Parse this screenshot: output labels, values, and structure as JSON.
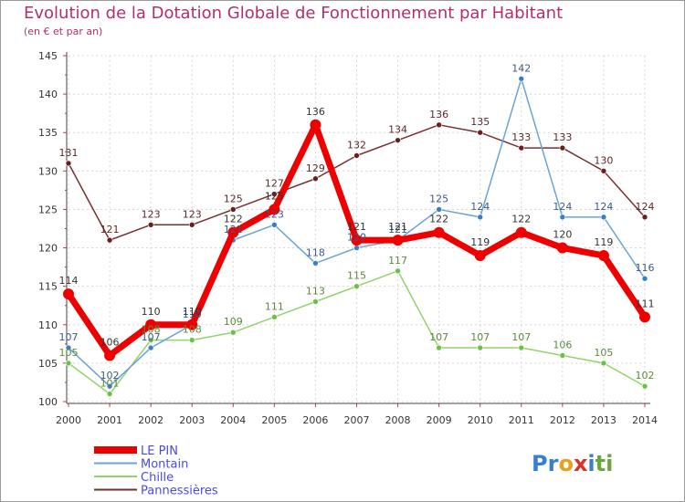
{
  "header": {
    "title": "Evolution de la Dotation Globale de Fonctionnement par Habitant",
    "subtitle": "(en € et par an)"
  },
  "logo": {
    "text": "Proxiti",
    "letters": [
      "P",
      "r",
      "o",
      "x",
      "i",
      "t",
      "i"
    ],
    "colors": [
      "#3a7fcf",
      "#3a7fcf",
      "#e8a21a",
      "#d9322a",
      "#3a7fcf",
      "#66a83a",
      "#66a83a"
    ]
  },
  "chart_data": {
    "type": "line",
    "title": "Evolution de la Dotation Globale de Fonctionnement par Habitant",
    "subtitle": "(en € et par an)",
    "xlabel": "",
    "ylabel": "",
    "ylim": [
      100,
      145
    ],
    "yticks": [
      100,
      105,
      110,
      115,
      120,
      125,
      130,
      135,
      140,
      145
    ],
    "grid": true,
    "legend_position": "bottom-left",
    "x": [
      "2000",
      "2001",
      "2002",
      "2003",
      "2004",
      "2005",
      "2006",
      "2007",
      "2008",
      "2009",
      "2010",
      "2011",
      "2012",
      "2013",
      "2014"
    ],
    "series": [
      {
        "name": "Pannessières",
        "color": "#7a2f2f",
        "pointColor": "#6a1f1f",
        "labelColor": "#5a2a2a",
        "width": 1.5,
        "marker": 3,
        "values": [
          131,
          121,
          123,
          123,
          125,
          127,
          129,
          132,
          134,
          136,
          135,
          133,
          133,
          130,
          124
        ]
      },
      {
        "name": "Chille",
        "color": "#93d36b",
        "pointColor": "#6cc04a",
        "labelColor": "#5a8a3a",
        "width": 1.5,
        "marker": 3,
        "values": [
          105,
          101,
          108,
          108,
          109,
          111,
          113,
          115,
          117,
          107,
          107,
          107,
          106,
          105,
          102
        ]
      },
      {
        "name": "Montain",
        "color": "#6ba3d6",
        "pointColor": "#3a7fc4",
        "labelColor": "#3a5a8a",
        "width": 1.5,
        "marker": 3,
        "values": [
          107,
          102,
          107,
          110,
          121,
          123,
          118,
          120,
          121,
          125,
          124,
          142,
          124,
          124,
          116
        ]
      },
      {
        "name": "LE PIN",
        "color": "#ee0000",
        "pointColor": "#ee0000",
        "labelColor": "#333333",
        "width": 7,
        "marker": 6,
        "values": [
          114,
          106,
          110,
          110,
          122,
          125,
          136,
          121,
          121,
          122,
          119,
          122,
          120,
          119,
          111
        ]
      }
    ],
    "legend_order": [
      "LE PIN",
      "Montain",
      "Chille",
      "Pannessières"
    ]
  }
}
